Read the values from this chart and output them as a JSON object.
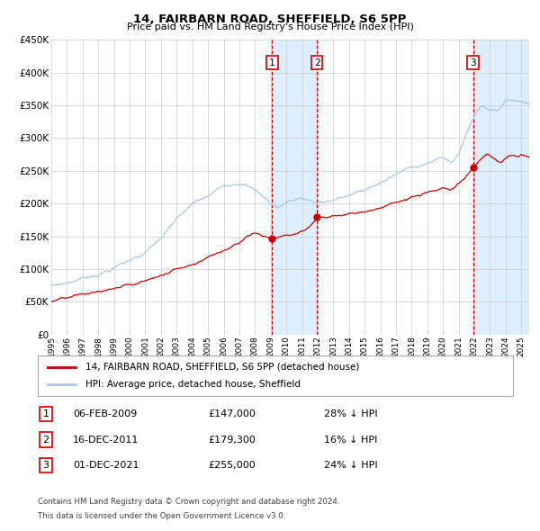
{
  "title": "14, FAIRBARN ROAD, SHEFFIELD, S6 5PP",
  "subtitle": "Price paid vs. HM Land Registry's House Price Index (HPI)",
  "hpi_label": "HPI: Average price, detached house, Sheffield",
  "property_label": "14, FAIRBARN ROAD, SHEFFIELD, S6 5PP (detached house)",
  "footer1": "Contains HM Land Registry data © Crown copyright and database right 2024.",
  "footer2": "This data is licensed under the Open Government Licence v3.0.",
  "hpi_color": "#a8c8e8",
  "property_color": "#cc0000",
  "sale_color": "#cc0000",
  "transactions": [
    {
      "num": 1,
      "date": "06-FEB-2009",
      "price": 147000,
      "pct": "28% ↓ HPI",
      "year": 2009.096
    },
    {
      "num": 2,
      "date": "16-DEC-2011",
      "price": 179300,
      "pct": "16% ↓ HPI",
      "year": 2011.958
    },
    {
      "num": 3,
      "date": "01-DEC-2021",
      "price": 255000,
      "pct": "24% ↓ HPI",
      "year": 2021.917
    }
  ],
  "ylim": [
    0,
    450000
  ],
  "yticks": [
    0,
    50000,
    100000,
    150000,
    200000,
    250000,
    300000,
    350000,
    400000,
    450000
  ],
  "xlim_start": 1995.0,
  "xlim_end": 2025.5,
  "xtick_years": [
    1995,
    1996,
    1997,
    1998,
    1999,
    2000,
    2001,
    2002,
    2003,
    2004,
    2005,
    2006,
    2007,
    2008,
    2009,
    2010,
    2011,
    2012,
    2013,
    2014,
    2015,
    2016,
    2017,
    2018,
    2019,
    2020,
    2021,
    2022,
    2023,
    2024,
    2025
  ],
  "background_color": "#ffffff",
  "grid_color": "#cccccc",
  "shade_color": "#ddeeff"
}
